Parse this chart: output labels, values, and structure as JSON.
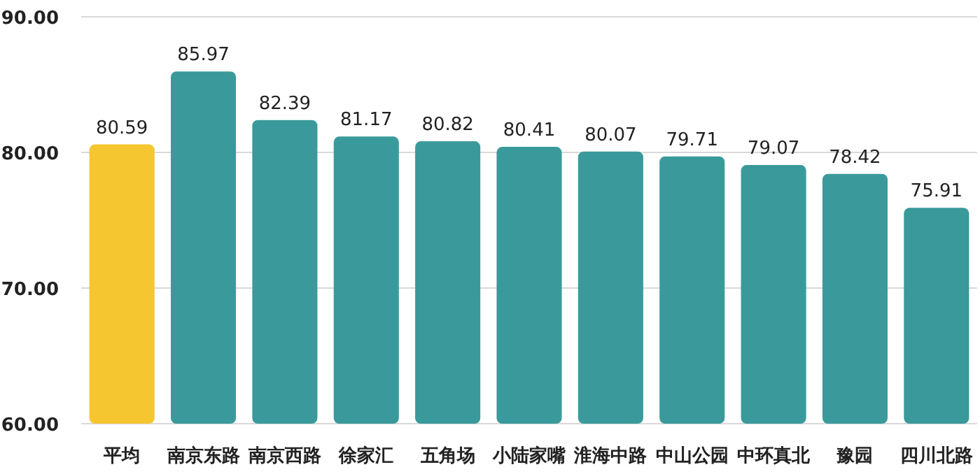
{
  "chart_data": {
    "type": "bar",
    "categories": [
      "平均",
      "南京东路",
      "南京西路",
      "徐家汇",
      "五角场",
      "小陆家嘴",
      "淮海中路",
      "中山公园",
      "中环真北",
      "豫园",
      "四川北路"
    ],
    "values": [
      80.59,
      85.97,
      82.39,
      81.17,
      80.82,
      80.41,
      80.07,
      79.71,
      79.07,
      78.42,
      75.91
    ],
    "colors": [
      "#f6c630",
      "#3a9a9b",
      "#3a9a9b",
      "#3a9a9b",
      "#3a9a9b",
      "#3a9a9b",
      "#3a9a9b",
      "#3a9a9b",
      "#3a9a9b",
      "#3a9a9b",
      "#3a9a9b"
    ],
    "ylim": [
      60,
      90
    ],
    "yticks": [
      {
        "value": 60,
        "label": "60.00"
      },
      {
        "value": 70,
        "label": "70.00"
      },
      {
        "value": 80,
        "label": "80.00"
      },
      {
        "value": 90,
        "label": "90.00"
      }
    ],
    "grid": "y",
    "data_labels": true
  }
}
